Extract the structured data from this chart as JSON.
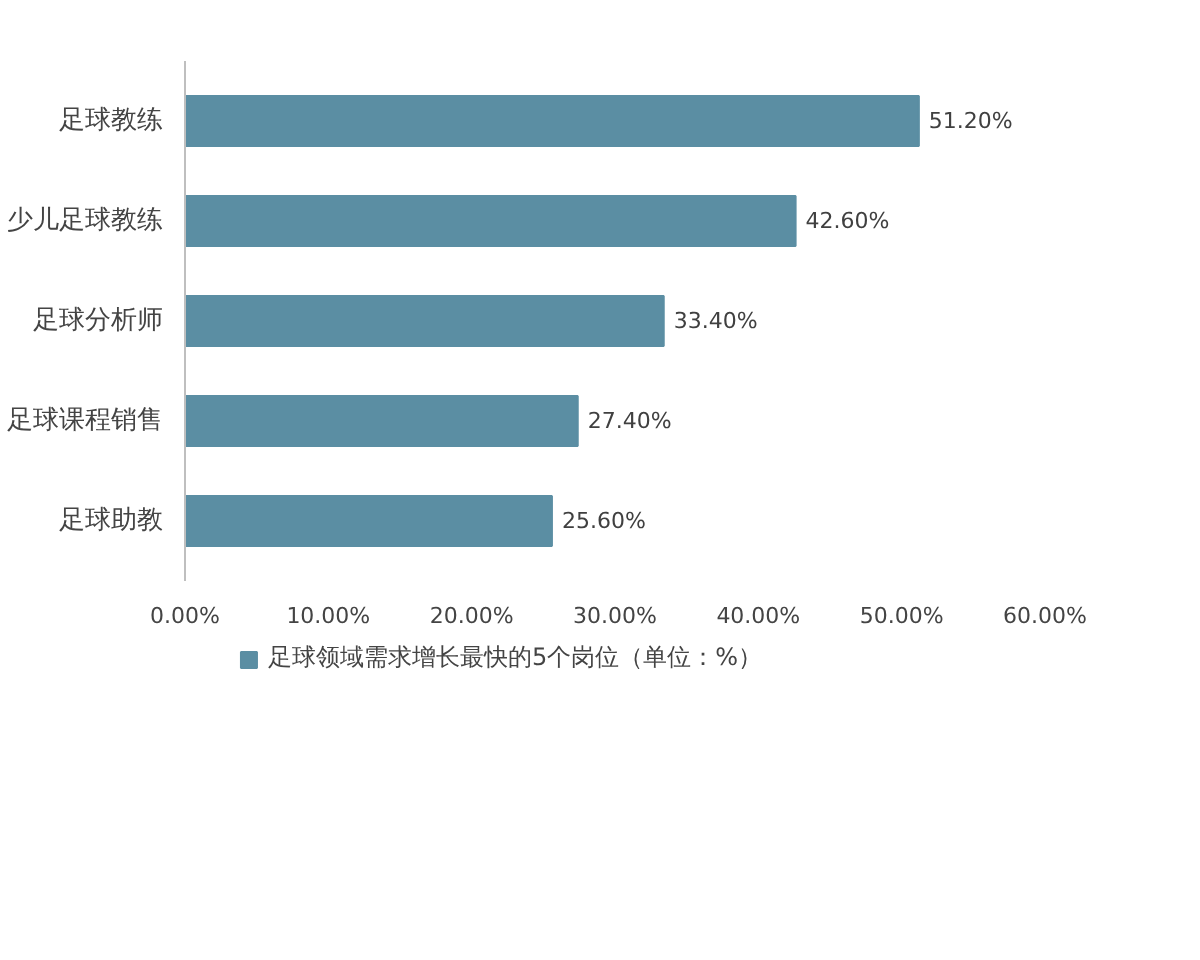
{
  "chart_data": {
    "type": "bar",
    "orientation": "horizontal",
    "categories": [
      "足球教练",
      "少儿足球教练",
      "足球分析师",
      "足球课程销售",
      "足球助教"
    ],
    "series": [
      {
        "name": "足球领域需求增长最快的5个岗位（单位：%）",
        "color": "#5b8ea3",
        "values": [
          51.2,
          42.6,
          33.4,
          27.4,
          25.6
        ],
        "value_labels": [
          "51.20%",
          "42.60%",
          "33.40%",
          "27.40%",
          "25.60%"
        ]
      }
    ],
    "xlim": [
      0,
      60
    ],
    "xticks": [
      {
        "value": 0,
        "label": "0.00%"
      },
      {
        "value": 10,
        "label": "10.00%"
      },
      {
        "value": 20,
        "label": "20.00%"
      },
      {
        "value": 30,
        "label": "30.00%"
      },
      {
        "value": 40,
        "label": "40.00%"
      },
      {
        "value": 50,
        "label": "50.00%"
      },
      {
        "value": 60,
        "label": "60.00%"
      }
    ],
    "grid": false,
    "legend": "bottom"
  }
}
